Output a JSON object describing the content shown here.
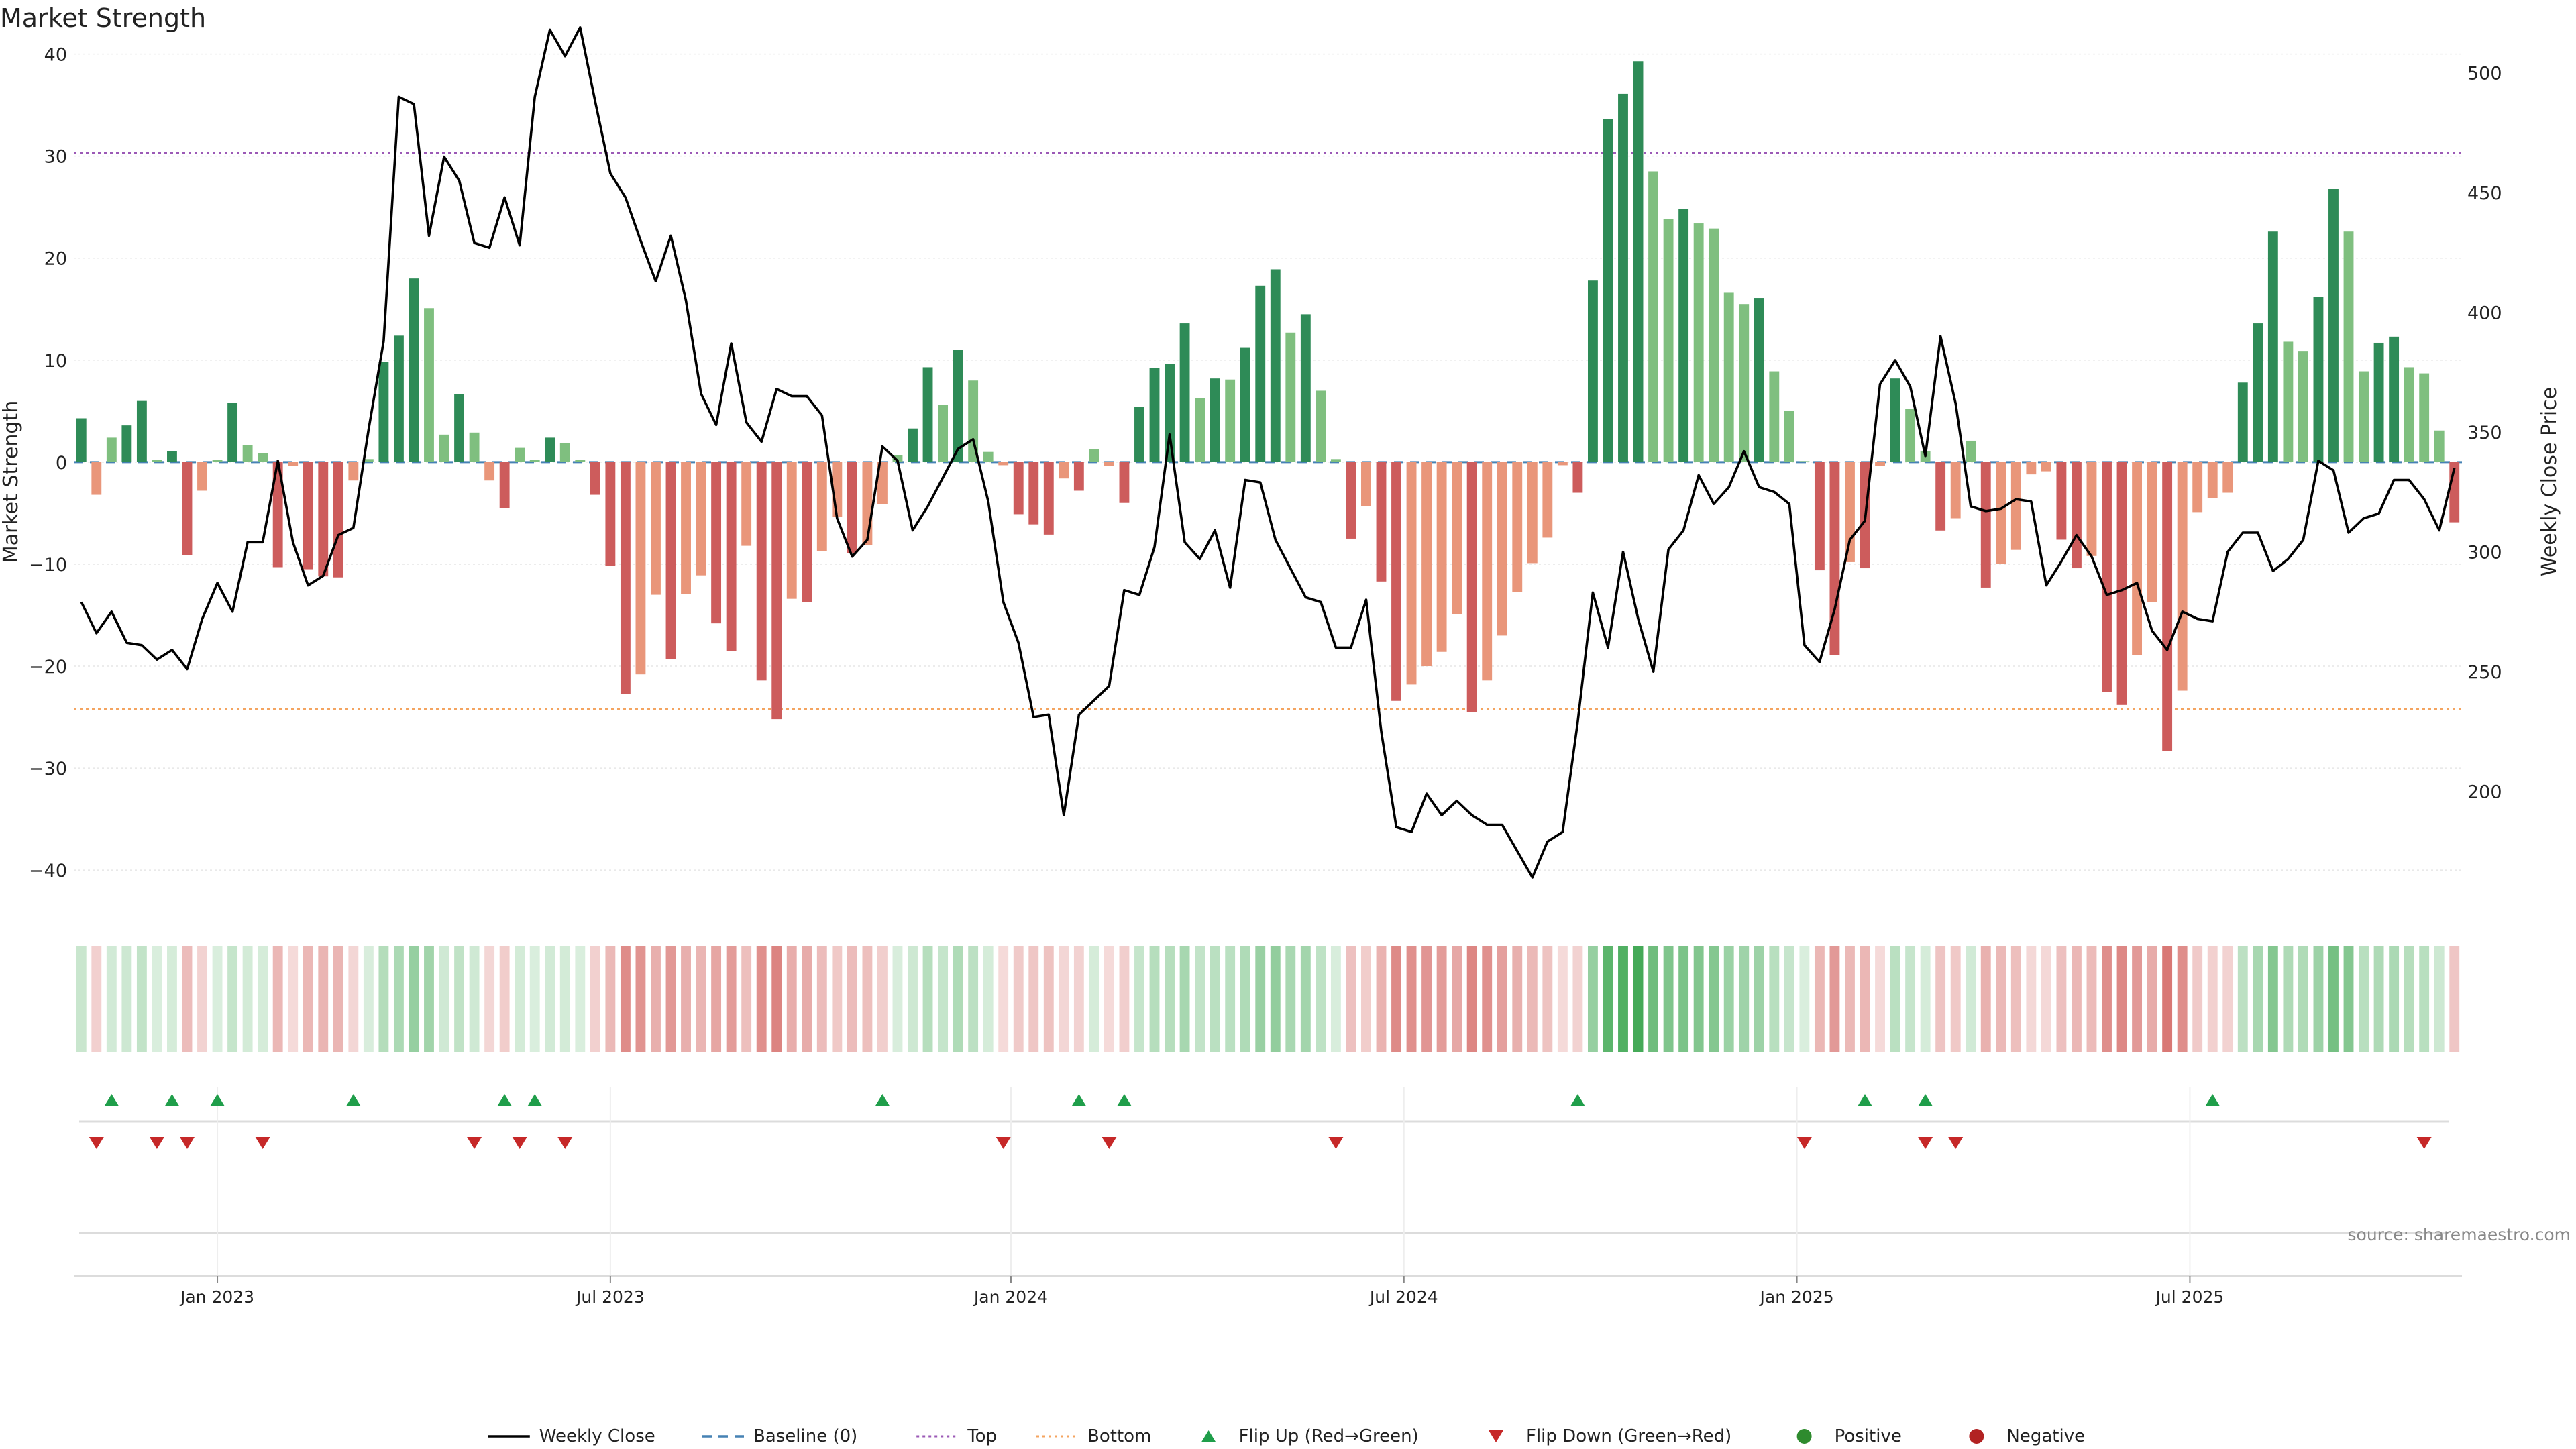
{
  "title": "Market Strength",
  "source_note": "source: sharemaestro.com",
  "colors": {
    "green_dark": "#2e8b57",
    "green_light": "#7fbf7f",
    "red_dark": "#cd5c5c",
    "red_light": "#e9967a",
    "price_line": "#000000",
    "top_line": "#9b59b6",
    "bottom_line": "#f4a460",
    "baseline": "#4682b4",
    "flip_up": "#1f9e4a",
    "flip_down": "#c62828",
    "positive": "#2e8b2e",
    "negative": "#b22222"
  },
  "legend": [
    {
      "label": "Weekly Close",
      "icon": "solid-line"
    },
    {
      "label": "Baseline (0)",
      "icon": "dashed-line"
    },
    {
      "label": "Top",
      "icon": "dotted-line"
    },
    {
      "label": "Bottom",
      "icon": "dotted-line"
    },
    {
      "label": "Flip Up (Red→Green)",
      "icon": "triangle-up"
    },
    {
      "label": "Flip Down (Green→Red)",
      "icon": "triangle-down"
    },
    {
      "label": "Positive",
      "icon": "circle"
    },
    {
      "label": "Negative",
      "icon": "circle"
    }
  ],
  "chart_data": {
    "type": "bar",
    "title": "Market Strength",
    "ylabel": "Market Strength",
    "y2label": "Weekly Close Price",
    "ylim": [
      -44,
      40.5
    ],
    "y2lim": [
      150,
      510
    ],
    "yticks": [
      -40,
      -30,
      -20,
      -10,
      0,
      10,
      20,
      30,
      40
    ],
    "yticklabels": [
      "−40",
      "−30",
      "−20",
      "−10",
      "0",
      "10",
      "20",
      "30",
      "40"
    ],
    "y2ticks": [
      200,
      250,
      300,
      350,
      400,
      450,
      500
    ],
    "xticks": [
      {
        "label": "Jan 2023",
        "week": 9
      },
      {
        "label": "Jul 2023",
        "week": 35
      },
      {
        "label": "Jan 2024",
        "week": 61.5
      },
      {
        "label": "Jul 2024",
        "week": 87.5
      },
      {
        "label": "Jan 2025",
        "week": 113.5
      },
      {
        "label": "Jul 2025",
        "week": 139.5
      }
    ],
    "top_level": 30.3,
    "bottom_level": -24.2,
    "baseline": 0,
    "grid": true,
    "legend_position": "bottom-center",
    "series": [
      {
        "name": "Market Strength",
        "values": [
          4.3,
          -3.2,
          2.4,
          3.6,
          6.0,
          0.2,
          1.1,
          -9.1,
          -2.8,
          0.2,
          5.8,
          1.7,
          0.9,
          -10.3,
          -0.4,
          -10.5,
          -11.2,
          -11.3,
          -1.8,
          0.3,
          9.8,
          12.4,
          18.0,
          15.1,
          2.7,
          6.7,
          2.9,
          -1.8,
          -4.5,
          1.4,
          0.2,
          2.4,
          1.9,
          0.2,
          -3.2,
          -10.2,
          -22.7,
          -20.8,
          -13.0,
          -19.3,
          -12.9,
          -11.1,
          -15.8,
          -18.5,
          -8.2,
          -21.4,
          -25.2,
          -13.4,
          -13.7,
          -8.7,
          -5.4,
          -8.9,
          -8.1,
          -4.1,
          0.7,
          3.3,
          9.3,
          5.6,
          11.0,
          8.0,
          1.0,
          -0.3,
          -5.1,
          -6.1,
          -7.1,
          -1.6,
          -2.8,
          1.3,
          -0.4,
          -4.0,
          5.4,
          9.2,
          9.6,
          13.6,
          6.3,
          8.2,
          8.1,
          11.2,
          17.3,
          18.9,
          12.7,
          14.5,
          7.0,
          0.3,
          -7.5,
          -4.3,
          -11.7,
          -23.4,
          -21.8,
          -20.0,
          -18.6,
          -14.9,
          -24.5,
          -21.4,
          -17.0,
          -12.7,
          -9.9,
          -7.4,
          -0.3,
          -3.0,
          17.8,
          33.6,
          36.1,
          39.3,
          28.5,
          23.8,
          24.8,
          23.4,
          22.9,
          16.6,
          15.5,
          16.1,
          8.9,
          5.0,
          0.1,
          -10.6,
          -18.9,
          -9.8,
          -10.4,
          -0.4,
          8.2,
          5.2,
          1.1,
          -6.7,
          -5.5,
          2.1,
          -12.3,
          -10.0,
          -8.6,
          -1.2,
          -0.9,
          -7.6,
          -10.4,
          -9.2,
          -22.5,
          -23.8,
          -18.9,
          -13.7,
          -28.3,
          -22.4,
          -4.9,
          -3.5,
          -3.0,
          7.8,
          13.6,
          22.6,
          11.8,
          10.9,
          16.2,
          26.8,
          22.6,
          8.9,
          11.7,
          12.3,
          9.3,
          8.7,
          3.1,
          -5.9
        ]
      },
      {
        "name": "Weekly Close",
        "axis": "right",
        "values": [
          279,
          266,
          275,
          262,
          261,
          255,
          259,
          251,
          272,
          287,
          275,
          304,
          304,
          338,
          304,
          286,
          290,
          307,
          310,
          351,
          388,
          490,
          487,
          432,
          465,
          455,
          429,
          427,
          448,
          428,
          490,
          518,
          507,
          519,
          488,
          458,
          448,
          430,
          413,
          432,
          405,
          366,
          353,
          387,
          354,
          346,
          368,
          365,
          365,
          357,
          314,
          298,
          305,
          344,
          338,
          309,
          319,
          331,
          343,
          347,
          321,
          279,
          262,
          231,
          232,
          190,
          232,
          238,
          244,
          284,
          282,
          302,
          349,
          304,
          297,
          309,
          285,
          330,
          329,
          305,
          293,
          281,
          279,
          260,
          260,
          280,
          225,
          185,
          183,
          199,
          190,
          196,
          190,
          186,
          186,
          175,
          164,
          179,
          183,
          229,
          283,
          260,
          300,
          272,
          250,
          301,
          309,
          332,
          320,
          327,
          342,
          327,
          325,
          320,
          261,
          254,
          276,
          305,
          313,
          370,
          380,
          369,
          340,
          390,
          362,
          319,
          317,
          318,
          322,
          321,
          286,
          296,
          307,
          298,
          282,
          284,
          287,
          267,
          259,
          275,
          272,
          271,
          300,
          308,
          308,
          292,
          297,
          305,
          338,
          334,
          308,
          314,
          316,
          330,
          330,
          322,
          309,
          335
        ]
      }
    ],
    "flip_up_weeks": [
      2,
      6,
      9,
      18,
      28,
      30,
      53,
      66,
      69,
      99,
      118,
      122,
      141
    ],
    "flip_down_weeks": [
      1,
      5,
      7,
      12,
      26,
      29,
      32,
      61,
      68,
      83,
      114,
      122,
      124,
      155
    ]
  }
}
